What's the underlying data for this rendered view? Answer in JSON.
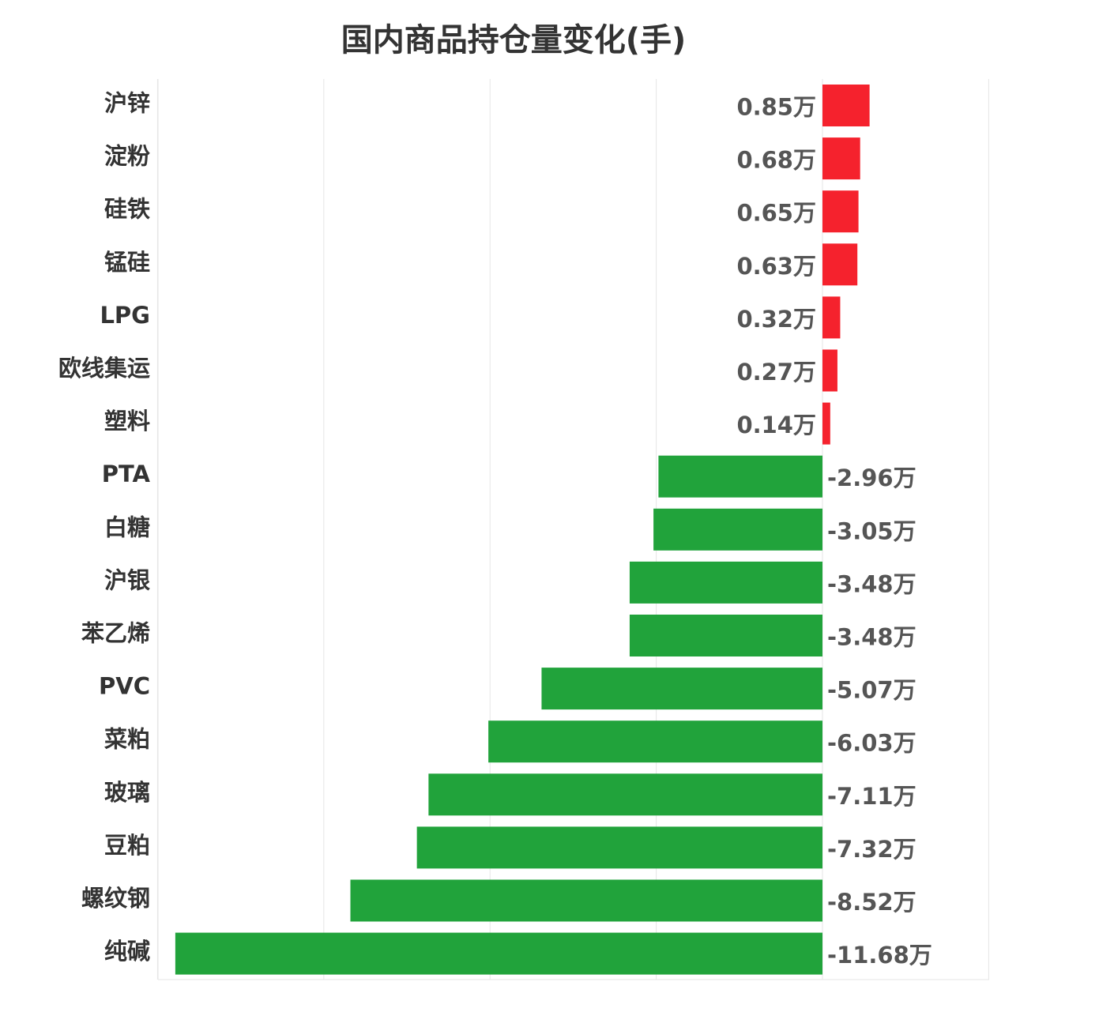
{
  "title": "国内商品持仓量变化(手)",
  "unit_suffix": "万",
  "chart_data": {
    "type": "bar",
    "orientation": "horizontal",
    "title": "国内商品持仓量变化(手)",
    "xlabel": "",
    "ylabel": "",
    "xlim": [
      -20,
      5
    ],
    "grid": true,
    "categories": [
      "沪锌",
      "淀粉",
      "硅铁",
      "锰硅",
      "LPG",
      "欧线集运",
      "塑料",
      "PTA",
      "白糖",
      "沪银",
      "苯乙烯",
      "PVC",
      "菜粕",
      "玻璃",
      "豆粕",
      "螺纹钢",
      "纯碱"
    ],
    "values": [
      0.85,
      0.68,
      0.65,
      0.63,
      0.32,
      0.27,
      0.14,
      -2.96,
      -3.05,
      -3.48,
      -3.48,
      -5.07,
      -6.03,
      -7.11,
      -7.32,
      -8.52,
      -11.68
    ],
    "value_labels": [
      "0.85万",
      "0.68万",
      "0.65万",
      "0.63万",
      "0.32万",
      "0.27万",
      "0.14万",
      "-2.96万",
      "-3.05万",
      "-3.48万",
      "-3.48万",
      "-5.07万",
      "-6.03万",
      "-7.11万",
      "-7.32万",
      "-8.52万",
      "-11.68万"
    ],
    "colors": {
      "positive": "#f5222d",
      "negative": "#21a33b",
      "grid": "#e6e6e6"
    }
  }
}
